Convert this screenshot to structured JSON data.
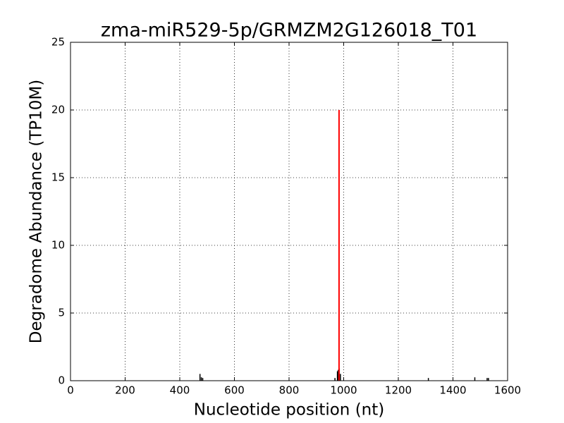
{
  "chart_data": {
    "type": "stem",
    "title": "zma-miR529-5p/GRMZM2G126018_T01",
    "x_label": "Nucleotide position (nt)",
    "y_label": "Degradome Abundance (TP10M)",
    "series": [
      {
        "color": "#000000",
        "x": [
          474,
          479,
          484,
          968,
          977,
          980,
          984,
          988,
          1310,
          1480,
          1525,
          1530
        ],
        "values": [
          0.5,
          0.25,
          0.2,
          0.2,
          0.7,
          0.8,
          0.9,
          0.5,
          0.2,
          0.25,
          0.2,
          0.2
        ]
      },
      {
        "color": "#ff0000",
        "x": [
          983
        ],
        "values": [
          20
        ]
      }
    ],
    "xlim": [
      0,
      1600
    ],
    "xticks": [
      0,
      200,
      400,
      600,
      800,
      1000,
      1200,
      1400,
      1600
    ],
    "ylim": [
      0,
      25
    ],
    "yticks": [
      0,
      5,
      10,
      15,
      20,
      25
    ],
    "grid": true
  }
}
